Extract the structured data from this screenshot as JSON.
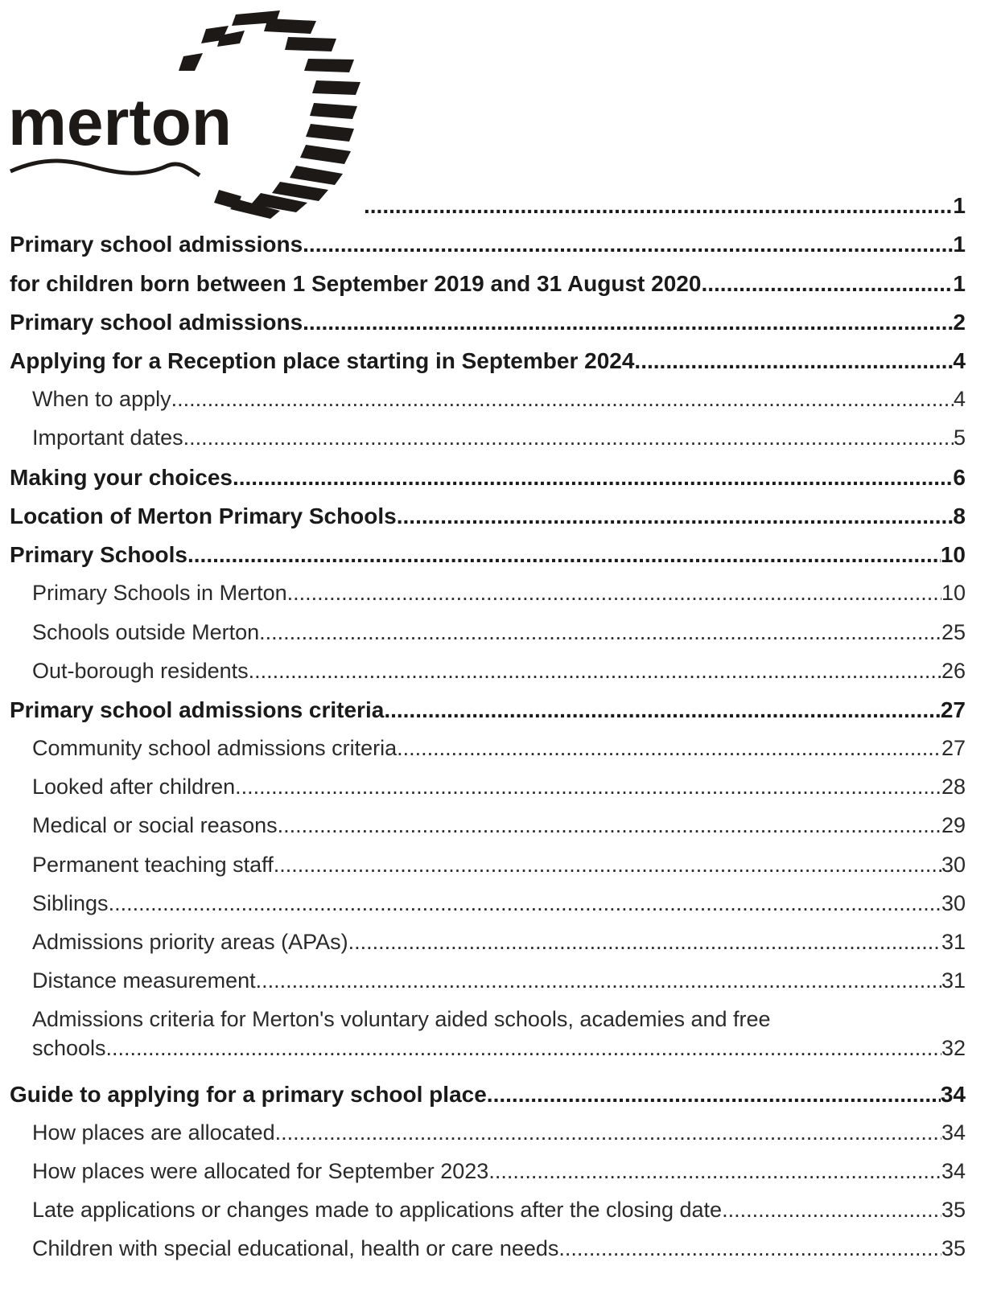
{
  "logo": {
    "text": "merton",
    "icon": "merton-logo"
  },
  "toc": [
    {
      "level": 1,
      "title": "",
      "page": "1"
    },
    {
      "level": 1,
      "title": "Primary school admissions",
      "page": "1"
    },
    {
      "level": 1,
      "title": "for children born between 1 September 2019 and 31 August 2020 ",
      "page": "1"
    },
    {
      "level": 1,
      "title": "Primary school admissions",
      "page": "2"
    },
    {
      "level": 1,
      "title": "Applying for a Reception place starting in September 2024 ",
      "page": "4"
    },
    {
      "level": 2,
      "title": "When to apply",
      "page": "4"
    },
    {
      "level": 2,
      "title": "Important dates",
      "page": "5"
    },
    {
      "level": 1,
      "title": "Making your choices",
      "page": "6"
    },
    {
      "level": 1,
      "title": "Location of Merton Primary Schools",
      "page": "8"
    },
    {
      "level": 1,
      "title": "Primary Schools ",
      "page": "10"
    },
    {
      "level": 2,
      "title": "Primary Schools in Merton",
      "page": "10"
    },
    {
      "level": 2,
      "title": "Schools outside Merton ",
      "page": "25"
    },
    {
      "level": 2,
      "title": "Out-borough residents ",
      "page": "26"
    },
    {
      "level": 1,
      "title": "Primary school admissions criteria",
      "page": "27"
    },
    {
      "level": 2,
      "title": "Community school admissions criteria",
      "page": "27"
    },
    {
      "level": 2,
      "title": "Looked after children ",
      "page": "28"
    },
    {
      "level": 2,
      "title": "Medical or social reasons ",
      "page": "29"
    },
    {
      "level": 2,
      "title": "Permanent teaching staff ",
      "page": "30"
    },
    {
      "level": 2,
      "title": "Siblings ",
      "page": "30"
    },
    {
      "level": 2,
      "title": "Admissions priority areas (APAs)",
      "page": "31"
    },
    {
      "level": 2,
      "title": "Distance measurement ",
      "page": "31"
    },
    {
      "level": 2,
      "title": "Admissions criteria for Merton's voluntary aided schools, academies and free",
      "title_cont": "schools",
      "page": "32"
    },
    {
      "level": 1,
      "title": "Guide to applying for a primary school place ",
      "page": "34"
    },
    {
      "level": 2,
      "title": "How places are allocated",
      "page": "34"
    },
    {
      "level": 2,
      "title": "How places were allocated for September 2023",
      "page": "34"
    },
    {
      "level": 2,
      "title": "Late applications or changes made to applications after the closing date ",
      "page": "35"
    },
    {
      "level": 2,
      "title": "Children with special educational, health or care needs ",
      "page": "35"
    }
  ]
}
